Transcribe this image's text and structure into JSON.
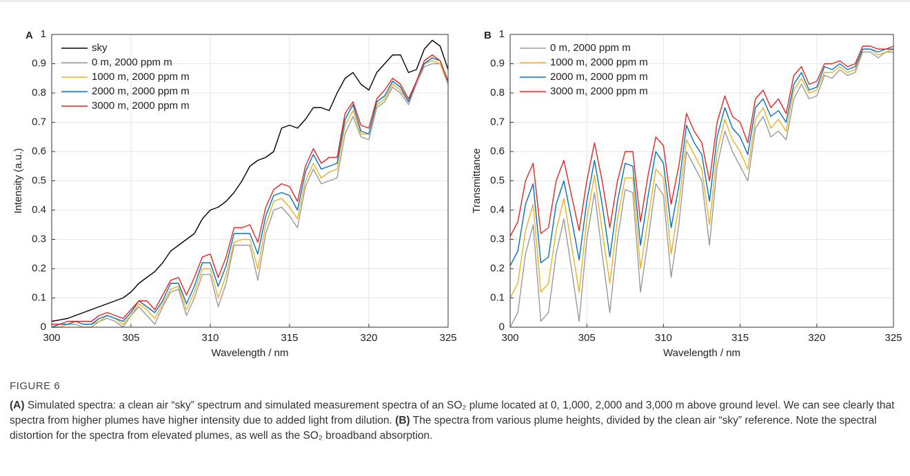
{
  "chart_data": [
    {
      "type": "line",
      "label": "A",
      "xlabel": "Wavelength / nm",
      "ylabel": "Intensity (a.u.)",
      "xlim": [
        300,
        325
      ],
      "xticks": [
        300,
        305,
        310,
        315,
        320,
        325
      ],
      "ylim": [
        0,
        1
      ],
      "yticks": [
        0,
        0.1,
        0.2,
        0.3,
        0.4,
        0.5,
        0.6,
        0.7,
        0.8,
        0.9,
        1
      ],
      "grid": true,
      "legend": "upper left",
      "x": [
        300,
        300.5,
        301,
        301.5,
        302,
        302.5,
        303,
        303.5,
        304,
        304.5,
        305,
        305.5,
        306,
        306.5,
        307,
        307.5,
        308,
        308.5,
        309,
        309.5,
        310,
        310.5,
        311,
        311.5,
        312,
        312.5,
        313,
        313.5,
        314,
        314.5,
        315,
        315.5,
        316,
        316.5,
        317,
        317.5,
        318,
        318.5,
        319,
        319.5,
        320,
        320.5,
        321,
        321.5,
        322,
        322.5,
        323,
        323.5,
        324,
        324.5,
        325
      ],
      "series": [
        {
          "name": "sky",
          "color": "#000000",
          "values": [
            0.02,
            0.025,
            0.03,
            0.04,
            0.05,
            0.06,
            0.07,
            0.08,
            0.09,
            0.1,
            0.12,
            0.15,
            0.17,
            0.19,
            0.22,
            0.26,
            0.28,
            0.3,
            0.32,
            0.37,
            0.4,
            0.41,
            0.43,
            0.46,
            0.5,
            0.55,
            0.57,
            0.58,
            0.6,
            0.68,
            0.69,
            0.68,
            0.71,
            0.75,
            0.75,
            0.74,
            0.8,
            0.85,
            0.87,
            0.83,
            0.81,
            0.87,
            0.9,
            0.93,
            0.93,
            0.87,
            0.88,
            0.95,
            0.98,
            0.96,
            0.88
          ]
        },
        {
          "name": "0 m, 2000 ppm m",
          "color": "#999999",
          "values": [
            0,
            0,
            0.01,
            0.01,
            0,
            0,
            0.02,
            0.03,
            0.02,
            0,
            0.04,
            0.07,
            0.04,
            0.01,
            0.07,
            0.12,
            0.13,
            0.04,
            0.1,
            0.18,
            0.18,
            0.07,
            0.15,
            0.28,
            0.28,
            0.28,
            0.16,
            0.32,
            0.4,
            0.41,
            0.38,
            0.34,
            0.48,
            0.54,
            0.49,
            0.5,
            0.51,
            0.66,
            0.72,
            0.65,
            0.64,
            0.75,
            0.77,
            0.82,
            0.8,
            0.76,
            0.83,
            0.89,
            0.9,
            0.9,
            0.83
          ]
        },
        {
          "name": "1000 m, 2000 ppm m",
          "color": "#edb120",
          "values": [
            0,
            0,
            0.01,
            0.02,
            0.01,
            0.01,
            0.02,
            0.04,
            0.03,
            0.01,
            0.04,
            0.08,
            0.06,
            0.03,
            0.08,
            0.13,
            0.14,
            0.06,
            0.12,
            0.2,
            0.2,
            0.1,
            0.18,
            0.29,
            0.3,
            0.3,
            0.2,
            0.35,
            0.43,
            0.44,
            0.41,
            0.37,
            0.5,
            0.56,
            0.51,
            0.53,
            0.54,
            0.69,
            0.74,
            0.66,
            0.66,
            0.76,
            0.78,
            0.83,
            0.81,
            0.77,
            0.84,
            0.9,
            0.91,
            0.9,
            0.84
          ]
        },
        {
          "name": "2000 m, 2000 ppm m",
          "color": "#0072bd",
          "values": [
            0,
            0.01,
            0.01,
            0.02,
            0.01,
            0.01,
            0.03,
            0.04,
            0.03,
            0.02,
            0.05,
            0.09,
            0.07,
            0.05,
            0.09,
            0.15,
            0.15,
            0.08,
            0.14,
            0.22,
            0.22,
            0.14,
            0.21,
            0.32,
            0.32,
            0.32,
            0.25,
            0.38,
            0.45,
            0.46,
            0.45,
            0.4,
            0.53,
            0.59,
            0.54,
            0.55,
            0.56,
            0.71,
            0.76,
            0.67,
            0.66,
            0.77,
            0.79,
            0.84,
            0.82,
            0.77,
            0.84,
            0.9,
            0.92,
            0.91,
            0.84
          ]
        },
        {
          "name": "3000 m, 2000 ppm m",
          "color": "#e8231f",
          "values": [
            0.01,
            0.01,
            0.02,
            0.02,
            0.02,
            0.02,
            0.04,
            0.05,
            0.04,
            0.03,
            0.06,
            0.09,
            0.09,
            0.06,
            0.11,
            0.16,
            0.17,
            0.11,
            0.17,
            0.24,
            0.25,
            0.17,
            0.24,
            0.34,
            0.34,
            0.35,
            0.29,
            0.41,
            0.47,
            0.49,
            0.48,
            0.43,
            0.55,
            0.61,
            0.56,
            0.58,
            0.58,
            0.73,
            0.77,
            0.69,
            0.68,
            0.78,
            0.81,
            0.85,
            0.83,
            0.78,
            0.84,
            0.91,
            0.93,
            0.91,
            0.84
          ]
        }
      ]
    },
    {
      "type": "line",
      "label": "B",
      "xlabel": "Wavelength / nm",
      "ylabel": "Transmittance",
      "xlim": [
        300,
        325
      ],
      "xticks": [
        300,
        305,
        310,
        315,
        320,
        325
      ],
      "ylim": [
        0,
        1
      ],
      "yticks": [
        0,
        0.1,
        0.2,
        0.3,
        0.4,
        0.5,
        0.6,
        0.7,
        0.8,
        0.9,
        1
      ],
      "grid": true,
      "legend": "upper left",
      "x": [
        300,
        300.5,
        301,
        301.5,
        302,
        302.5,
        303,
        303.5,
        304,
        304.5,
        305,
        305.5,
        306,
        306.5,
        307,
        307.5,
        308,
        308.5,
        309,
        309.5,
        310,
        310.5,
        311,
        311.5,
        312,
        312.5,
        313,
        313.5,
        314,
        314.5,
        315,
        315.5,
        316,
        316.5,
        317,
        317.5,
        318,
        318.5,
        319,
        319.5,
        320,
        320.5,
        321,
        321.5,
        322,
        322.5,
        323,
        323.5,
        324,
        324.5,
        325
      ],
      "series": [
        {
          "name": "0 m, 2000 ppm m",
          "color": "#999999",
          "values": [
            0,
            0.05,
            0.25,
            0.35,
            0.02,
            0.05,
            0.25,
            0.37,
            0.2,
            0.02,
            0.3,
            0.46,
            0.25,
            0.05,
            0.3,
            0.47,
            0.46,
            0.12,
            0.3,
            0.49,
            0.45,
            0.17,
            0.35,
            0.6,
            0.55,
            0.5,
            0.28,
            0.55,
            0.67,
            0.6,
            0.55,
            0.5,
            0.68,
            0.72,
            0.65,
            0.67,
            0.64,
            0.78,
            0.83,
            0.78,
            0.79,
            0.86,
            0.85,
            0.88,
            0.86,
            0.87,
            0.94,
            0.94,
            0.92,
            0.94,
            0.94
          ]
        },
        {
          "name": "1000 m, 2000 ppm m",
          "color": "#edb120",
          "values": [
            0.1,
            0.15,
            0.33,
            0.42,
            0.12,
            0.15,
            0.33,
            0.44,
            0.28,
            0.12,
            0.37,
            0.52,
            0.33,
            0.15,
            0.37,
            0.51,
            0.51,
            0.2,
            0.37,
            0.54,
            0.51,
            0.25,
            0.42,
            0.64,
            0.59,
            0.54,
            0.35,
            0.6,
            0.71,
            0.64,
            0.6,
            0.54,
            0.71,
            0.75,
            0.68,
            0.71,
            0.67,
            0.81,
            0.85,
            0.8,
            0.81,
            0.87,
            0.87,
            0.89,
            0.87,
            0.88,
            0.95,
            0.95,
            0.93,
            0.94,
            0.95
          ]
        },
        {
          "name": "2000 m, 2000 ppm m",
          "color": "#0072bd",
          "values": [
            0.21,
            0.26,
            0.42,
            0.49,
            0.22,
            0.24,
            0.42,
            0.5,
            0.37,
            0.23,
            0.43,
            0.57,
            0.42,
            0.24,
            0.43,
            0.56,
            0.55,
            0.28,
            0.45,
            0.6,
            0.56,
            0.34,
            0.48,
            0.69,
            0.63,
            0.59,
            0.43,
            0.65,
            0.75,
            0.68,
            0.65,
            0.59,
            0.75,
            0.78,
            0.72,
            0.74,
            0.7,
            0.83,
            0.87,
            0.81,
            0.82,
            0.89,
            0.88,
            0.9,
            0.88,
            0.89,
            0.95,
            0.95,
            0.94,
            0.95,
            0.95
          ]
        },
        {
          "name": "3000 m, 2000 ppm m",
          "color": "#e8231f",
          "values": [
            0.31,
            0.36,
            0.5,
            0.56,
            0.32,
            0.34,
            0.5,
            0.57,
            0.45,
            0.33,
            0.5,
            0.63,
            0.5,
            0.34,
            0.5,
            0.6,
            0.6,
            0.36,
            0.52,
            0.65,
            0.62,
            0.42,
            0.55,
            0.73,
            0.67,
            0.63,
            0.5,
            0.7,
            0.79,
            0.72,
            0.7,
            0.63,
            0.78,
            0.81,
            0.75,
            0.78,
            0.73,
            0.86,
            0.89,
            0.83,
            0.84,
            0.9,
            0.9,
            0.91,
            0.89,
            0.9,
            0.96,
            0.96,
            0.95,
            0.95,
            0.96
          ]
        }
      ]
    }
  ],
  "figure": {
    "label": "FIGURE 6",
    "caption_a_label": "(A)",
    "caption_a_text": " Simulated spectra: a clean air “sky” spectrum and simulated measurement spectra of an SO₂ plume located at 0, 1,000, 2,000 and 3,000 m above ground level. We can see clearly that spectra from higher plumes have higher intensity due to added light from dilution.",
    "caption_b_label": "(B)",
    "caption_b_text": " The spectra from various plume heights, divided by the clean air “sky” reference. Note the spectral distortion for the spectra from elevated plumes, as well as the SO₂ broadband absorption."
  }
}
